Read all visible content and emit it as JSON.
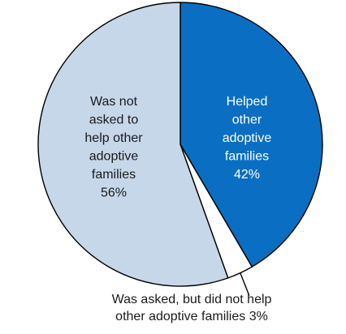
{
  "chart_data": {
    "type": "pie",
    "title": "",
    "slices": [
      {
        "label_lines": [
          "Helped",
          "other",
          "adoptive",
          "families"
        ],
        "value": 42,
        "value_label": "42%",
        "color": "#0a6fc2",
        "text_color": "#ffffff"
      },
      {
        "label_lines": [
          "Was asked, but did not help",
          "other adoptive families  3%"
        ],
        "value": 3,
        "value_label": "",
        "color": "#ffffff",
        "text_color": "#1a1a1a"
      },
      {
        "label_lines": [
          "Was not",
          "asked to",
          "help other",
          "adoptive",
          "families"
        ],
        "value": 56,
        "value_label": "56%",
        "color": "#c7d7ea",
        "text_color": "#1a1a1a"
      }
    ]
  }
}
